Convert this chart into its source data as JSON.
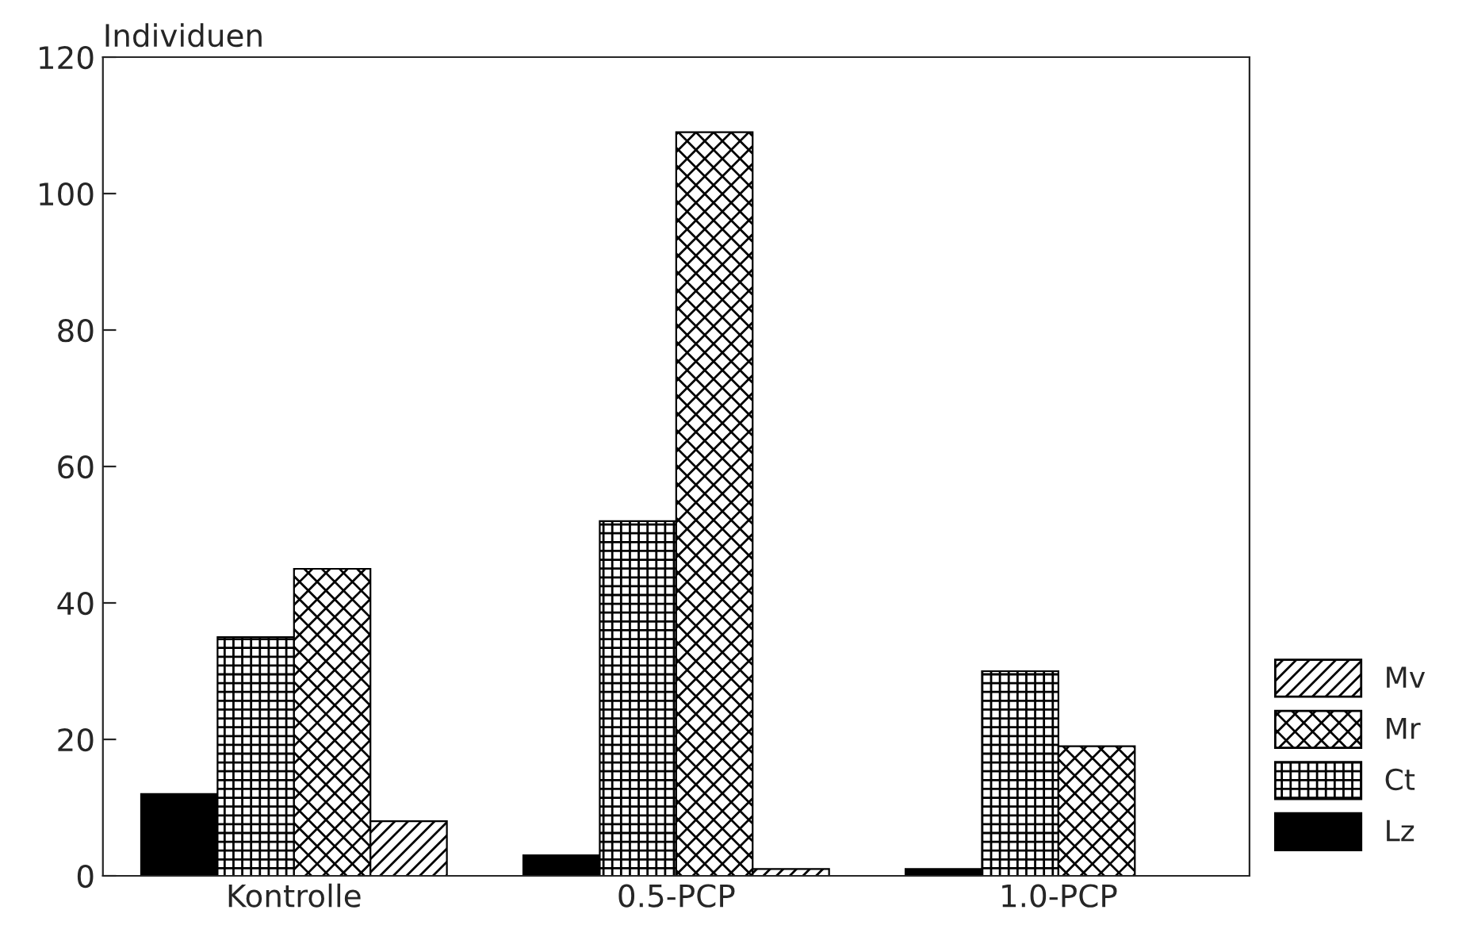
{
  "chart_data": {
    "type": "bar",
    "ylabel": "Individuen",
    "categories": [
      "Kontrolle",
      "0.5-PCP",
      "1.0-PCP"
    ],
    "series": [
      {
        "name": "Lz",
        "color": "#000000",
        "values": [
          12,
          3,
          1
        ]
      },
      {
        "name": "Ct",
        "color": "#000000",
        "values": [
          35,
          52,
          30
        ]
      },
      {
        "name": "Mr",
        "color": "#000000",
        "values": [
          45,
          109,
          19
        ]
      },
      {
        "name": "Mv",
        "color": "#000000",
        "values": [
          8,
          1,
          0
        ]
      }
    ],
    "ylim": [
      0,
      120
    ],
    "yticks": [
      0,
      20,
      40,
      60,
      80,
      100,
      120
    ],
    "grid": false,
    "legend": "right"
  }
}
